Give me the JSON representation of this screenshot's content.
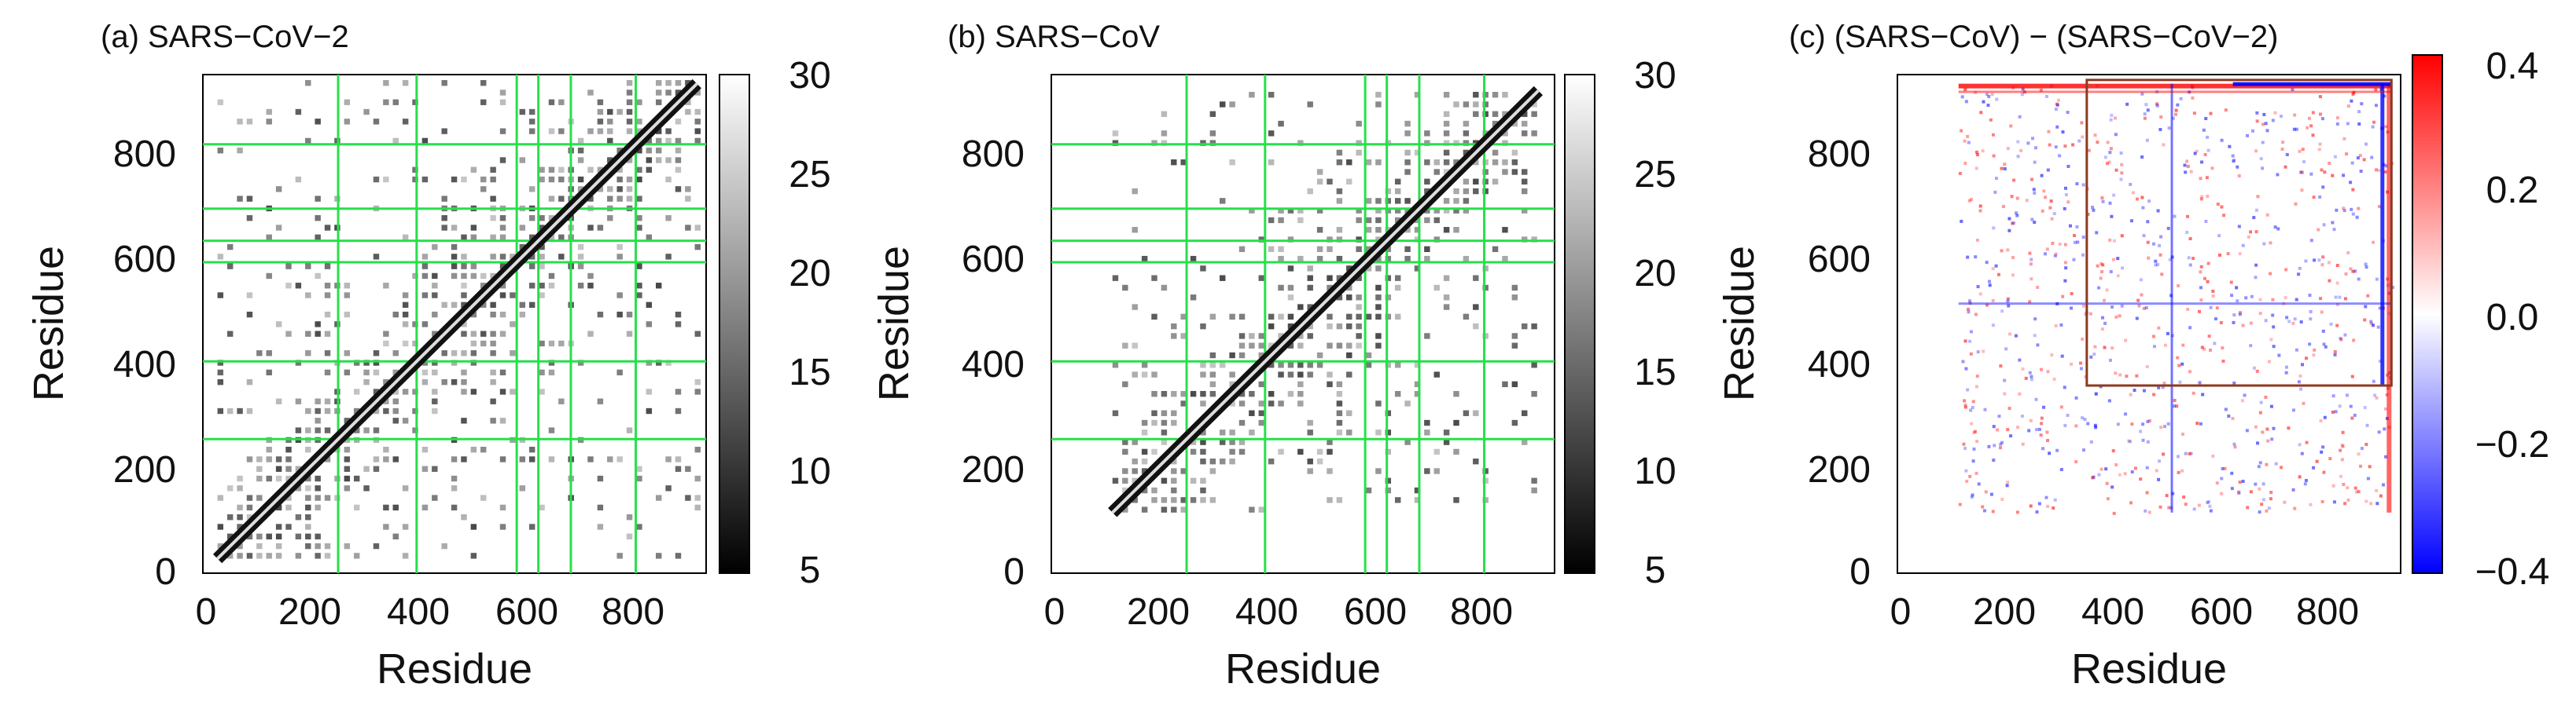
{
  "chart_data": [
    {
      "type": "heatmap",
      "title": "(a) SARS−CoV−2",
      "xlabel": "Residue",
      "ylabel": "Residue",
      "xlim": [
        0,
        930
      ],
      "ylim": [
        0,
        930
      ],
      "x_ticks": [
        "0",
        "200",
        "400",
        "600",
        "800"
      ],
      "y_ticks": [
        "0",
        "200",
        "400",
        "600",
        "800"
      ],
      "colorbar": {
        "range": [
          5,
          30
        ],
        "ticks": [
          "5",
          "10",
          "15",
          "20",
          "25",
          "30"
        ],
        "colormap": "grayscale (black low, white high)"
      },
      "residue_range": [
        27,
        913
      ],
      "green_lines": [
        250,
        395,
        580,
        620,
        680,
        800
      ],
      "grid": false
    },
    {
      "type": "heatmap",
      "title": "(b) SARS−CoV",
      "xlabel": "Residue",
      "ylabel": "Residue",
      "xlim": [
        0,
        930
      ],
      "ylim": [
        0,
        930
      ],
      "x_ticks": [
        "0",
        "200",
        "400",
        "600",
        "800"
      ],
      "y_ticks": [
        "0",
        "200",
        "400",
        "600",
        "800"
      ],
      "colorbar": {
        "range": [
          5,
          30
        ],
        "ticks": [
          "5",
          "10",
          "15",
          "20",
          "25",
          "30"
        ],
        "colormap": "grayscale (black low, white high)"
      },
      "residue_range": [
        113,
        900
      ],
      "green_lines": [
        250,
        395,
        580,
        620,
        680,
        800
      ],
      "grid": false
    },
    {
      "type": "heatmap",
      "title": "(c) (SARS−CoV) − (SARS−CoV−2)",
      "xlabel": "Residue",
      "ylabel": "Residue",
      "xlim": [
        0,
        930
      ],
      "ylim": [
        0,
        930
      ],
      "x_ticks": [
        "0",
        "200",
        "400",
        "600",
        "800"
      ],
      "y_ticks": [
        "0",
        "200",
        "400",
        "600",
        "800"
      ],
      "colorbar": {
        "range": [
          -0.4,
          0.4
        ],
        "ticks": [
          "0.4",
          "0.2",
          "0.0",
          "−0.2",
          "−0.4"
        ],
        "colormap": "blue-white-red diverging"
      },
      "residue_range": [
        113,
        913
      ],
      "highlight_box": {
        "x": [
          350,
          913
        ],
        "y": [
          350,
          920
        ],
        "color": "#8b3a1e"
      },
      "grid": false
    }
  ],
  "colors": {
    "green_line": "#27e04a",
    "box": "#8b3a1e",
    "negative": "#0000ff",
    "positive": "#ff0000"
  }
}
